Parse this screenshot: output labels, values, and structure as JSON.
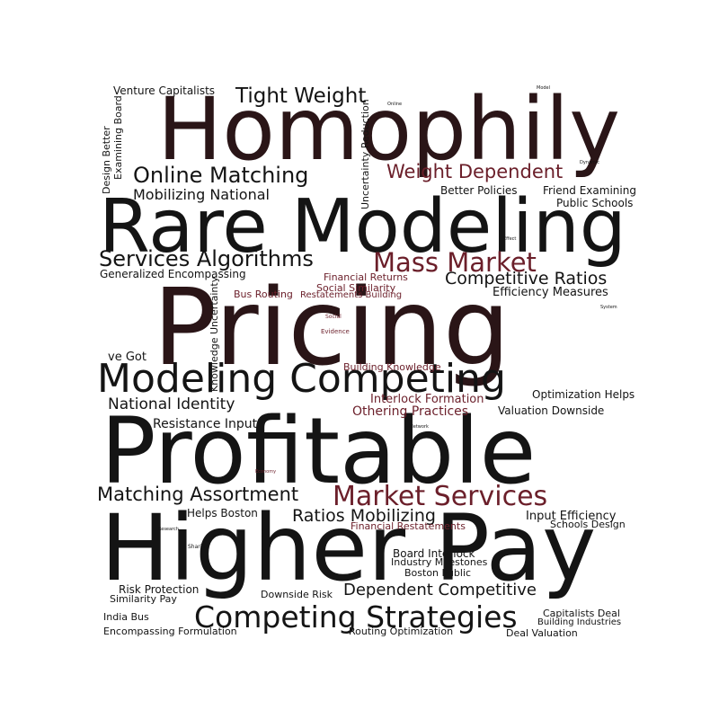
{
  "words": {
    "homophily": "Homophily",
    "rare_modeling": "Rare Modeling",
    "pricing": "Pricing",
    "profitable": "Profitable",
    "higher_pay": "Higher Pay",
    "modeling_competing": "Modeling Competing",
    "competing_strategies": "Competing Strategies",
    "market_services": "Market Services",
    "mass_market": "Mass Market",
    "services_algorithms": "Services Algorithms",
    "online_matching": "Online Matching",
    "tight_weight": "Tight Weight",
    "weight_dependent": "Weight Dependent",
    "matching_assortment": "Matching Assortment",
    "ratios_mobilizing": "Ratios Mobilizing",
    "dependent_competitive": "Dependent Competitive",
    "competitive_ratios": "Competitive Ratios",
    "national_identity": "National Identity",
    "mobilizing_national": "Mobilizing National",
    "venture_capitalists": "Venture Capitalists",
    "generalized_encompassing": "Generalized Encompassing",
    "efficiency_measures": "Efficiency Measures",
    "better_policies": "Better Policies",
    "friend_examining": "Friend Examining",
    "public_schools": "Public Schools",
    "financial_returns": "Financial Returns",
    "social_similarity": "Social Similarity",
    "bus_routing": "Bus Routing",
    "restatements_building": "Restatements Building",
    "ve_got": "ve Got",
    "building_knowledge": "Building Knowledge",
    "interlock_formation": "Interlock Formation",
    "othering_practices": "Othering Practices",
    "optimization_helps": "Optimization Helps",
    "valuation_downside": "Valuation Downside",
    "resistance_input": "Resistance Input",
    "helps_boston": "Helps Boston",
    "input_efficiency": "Input Efficiency",
    "schools_design": "Schools Design",
    "financial_restatements": "Financial Restatements",
    "board_interlock": "Board Interlock",
    "industry_milestones": "Industry Milestones",
    "boston_public": "Boston Public",
    "risk_protection": "Risk Protection",
    "similarity_pay": "Similarity Pay",
    "downside_risk": "Downside Risk",
    "india_bus": "India Bus",
    "encompassing_formulation": "Encompassing Formulation",
    "routing_optimization": "Routing Optimization",
    "capitalists_deal": "Capitalists Deal",
    "building_industries": "Building Industries",
    "deal_valuation": "Deal Valuation",
    "design_better": "Design Better",
    "examining_board": "Examining Board",
    "uncertainty_reduction": "Uncertainty Reduction",
    "knowledge_uncertainty": "Knowledge Uncertainty",
    "social": "Social",
    "evidence": "Evidence",
    "sharing": "Sharing",
    "network": "Network",
    "economy": "Economy",
    "system": "System",
    "effect": "Effect",
    "online": "Online",
    "model": "Model",
    "dynamic": "Dynamic",
    "research": "Research"
  },
  "palette": {
    "dark": "#141414",
    "highlight": "#6b1f2a",
    "blend": "#2a1517",
    "background": "#ffffff"
  }
}
